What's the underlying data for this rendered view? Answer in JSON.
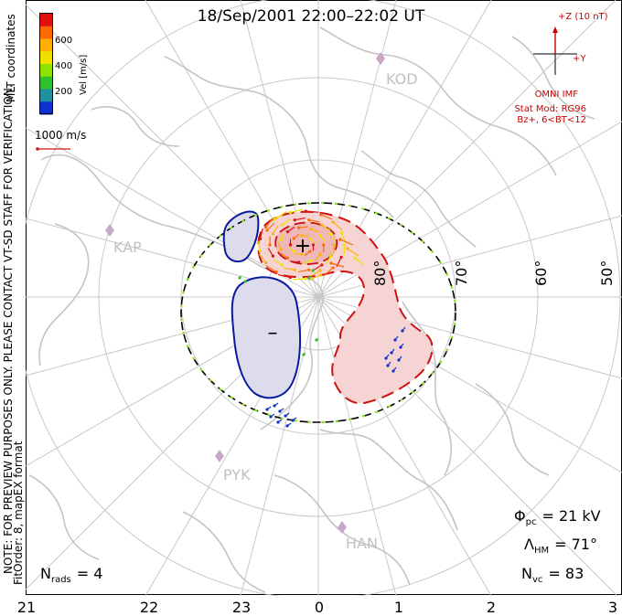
{
  "title": "18/Sep/2001 22:00–22:02 UT",
  "coords_label": "MLT coordinates",
  "colorbar": {
    "label": "Vel [m/s]",
    "ticks": [
      "600",
      "400",
      "200"
    ],
    "colors": [
      "#e01010",
      "#ff6a00",
      "#ffb000",
      "#f0e000",
      "#90e000",
      "#30c030",
      "#2090a0",
      "#1030d0"
    ]
  },
  "ref_vector_label": "1000 m/s",
  "imf": {
    "z_label": "+Z (10 nT)",
    "y_label": "+Y",
    "source": "OMNI IMF",
    "model_line1": "Stat Mod: RG96",
    "model_line2": "Bz+, 6<BT<12"
  },
  "side_note_1": "NOTE: FOR PREVIEW PURPOSES ONLY. PLEASE CONTACT VT-SD STAFF FOR VERIFICATION.",
  "side_note_2": "FitOrder: 8, mapEX format",
  "latitude_labels": [
    "80°",
    "70°",
    "60°",
    "50°"
  ],
  "stations": [
    "KOD",
    "KAP",
    "PYK",
    "HAN"
  ],
  "time_axis": [
    "21",
    "22",
    "23",
    "0",
    "1",
    "2",
    "3"
  ],
  "cell_signs": {
    "positive": "+",
    "negative": "–"
  },
  "stats": {
    "phi_pc": {
      "symbol": "Φ",
      "sub": "pc",
      "value": "= 21 kV"
    },
    "lambda_hm": {
      "symbol": "Λ",
      "sub": "HM",
      "value": "= 71°"
    },
    "n_vc": {
      "symbol": "N",
      "sub": "vc",
      "value": "= 83"
    },
    "n_rads": {
      "symbol": "N",
      "sub": "rads",
      "value": "= 4"
    }
  }
}
